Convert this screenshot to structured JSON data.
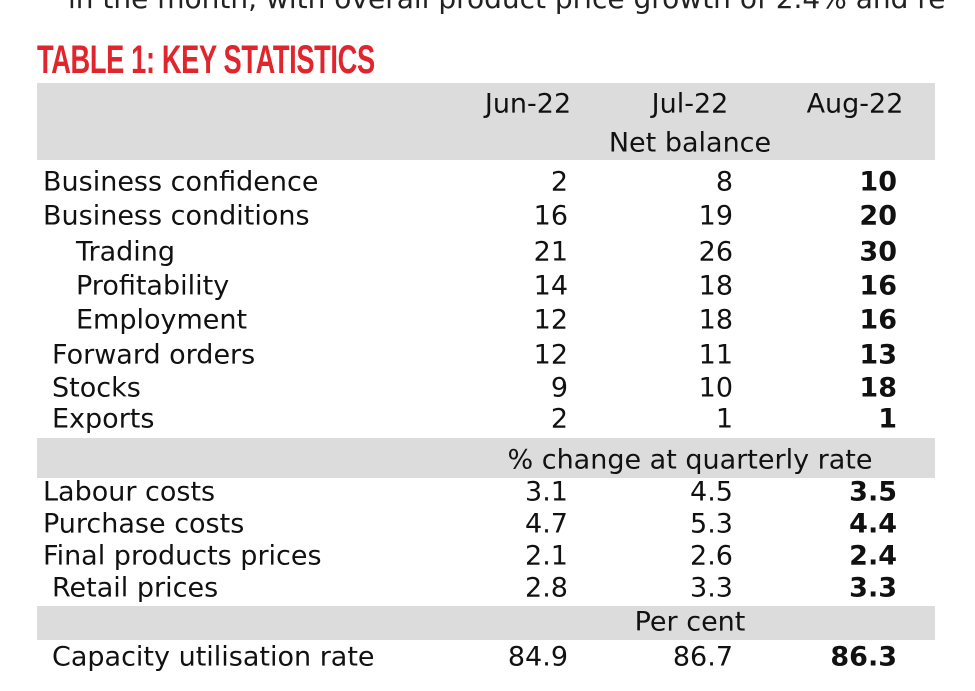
{
  "intro_text": "in the month, with overall product price growth of 2.4% and re",
  "title": "TABLE 1: KEY STATISTICS",
  "table": {
    "columns": [
      "Jun-22",
      "Jul-22",
      "Aug-22"
    ],
    "sections": [
      {
        "heading": "Net balance",
        "rows": [
          {
            "label": "Business confidence",
            "values": [
              "2",
              "8",
              "10"
            ]
          },
          {
            "label": "Business conditions",
            "values": [
              "16",
              "19",
              "20"
            ]
          },
          {
            "label": "Trading",
            "values": [
              "21",
              "26",
              "30"
            ]
          },
          {
            "label": "Profitability",
            "values": [
              "14",
              "18",
              "16"
            ]
          },
          {
            "label": "Employment",
            "values": [
              "12",
              "18",
              "16"
            ]
          },
          {
            "label": "Forward orders",
            "values": [
              "12",
              "11",
              "13"
            ]
          },
          {
            "label": "Stocks",
            "values": [
              "9",
              "10",
              "18"
            ]
          },
          {
            "label": "Exports",
            "values": [
              "2",
              "1",
              "1"
            ]
          }
        ]
      },
      {
        "heading": "% change at quarterly rate",
        "rows": [
          {
            "label": "Labour costs",
            "values": [
              "3.1",
              "4.5",
              "3.5"
            ]
          },
          {
            "label": "Purchase costs",
            "values": [
              "4.7",
              "5.3",
              "4.4"
            ]
          },
          {
            "label": "Final products prices",
            "values": [
              "2.1",
              "2.6",
              "2.4"
            ]
          },
          {
            "label": "Retail prices",
            "values": [
              "2.8",
              "3.3",
              "3.3"
            ]
          }
        ]
      },
      {
        "heading": "Per cent",
        "rows": [
          {
            "label": "Capacity utilisation rate",
            "values": [
              "84.9",
              "86.7",
              "86.3"
            ]
          }
        ]
      }
    ]
  }
}
